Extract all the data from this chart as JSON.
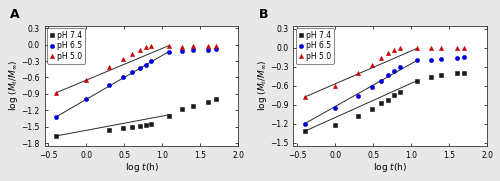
{
  "panel_A": {
    "label": "A",
    "xlim": [
      -0.55,
      2.0
    ],
    "ylim": [
      -1.85,
      0.35
    ],
    "xticks": [
      -0.5,
      0.0,
      0.5,
      1.0,
      1.5,
      2.0
    ],
    "yticks": [
      -1.8,
      -1.5,
      -1.2,
      -0.9,
      -0.6,
      -0.3,
      0.0,
      0.3
    ],
    "series": [
      {
        "label": "pH 7.4",
        "color": "#1a1a1a",
        "marker": "s",
        "x": [
          -0.4,
          0.3,
          0.48,
          0.6,
          0.7,
          0.78,
          0.85,
          1.08,
          1.26,
          1.4,
          1.6,
          1.7
        ],
        "y": [
          -1.67,
          -1.57,
          -1.52,
          -1.5,
          -1.48,
          -1.47,
          -1.46,
          -1.3,
          -1.18,
          -1.13,
          -1.05,
          -1.0
        ],
        "fit_x": [
          -0.4,
          1.1
        ],
        "fit_y": [
          -1.67,
          -1.28
        ]
      },
      {
        "label": "pH 6.5",
        "color": "#0000dd",
        "marker": "o",
        "x": [
          -0.4,
          0.0,
          0.3,
          0.48,
          0.6,
          0.7,
          0.78,
          0.85,
          1.08,
          1.26,
          1.4,
          1.6,
          1.7
        ],
        "y": [
          -1.32,
          -1.0,
          -0.74,
          -0.6,
          -0.5,
          -0.43,
          -0.37,
          -0.3,
          -0.13,
          -0.12,
          -0.1,
          -0.09,
          -0.08
        ],
        "fit_x": [
          -0.4,
          1.08
        ],
        "fit_y": [
          -1.32,
          -0.13
        ]
      },
      {
        "label": "pH 5.0",
        "color": "#cc0000",
        "marker": "^",
        "x": [
          -0.4,
          0.0,
          0.3,
          0.48,
          0.6,
          0.7,
          0.78,
          0.85,
          1.08,
          1.26,
          1.4,
          1.6,
          1.7
        ],
        "y": [
          -0.88,
          -0.65,
          -0.4,
          -0.27,
          -0.17,
          -0.1,
          -0.05,
          -0.02,
          -0.03,
          -0.05,
          -0.03,
          -0.02,
          -0.02
        ],
        "fit_x": [
          -0.4,
          1.08
        ],
        "fit_y": [
          -0.88,
          -0.02
        ]
      }
    ]
  },
  "panel_B": {
    "label": "B",
    "xlim": [
      -0.55,
      2.0
    ],
    "ylim": [
      -1.55,
      0.35
    ],
    "xticks": [
      -0.5,
      0.0,
      0.5,
      1.0,
      1.5,
      2.0
    ],
    "yticks": [
      -1.5,
      -1.2,
      -0.9,
      -0.6,
      -0.3,
      0.0,
      0.3
    ],
    "series": [
      {
        "label": "pH 7.4",
        "color": "#1a1a1a",
        "marker": "s",
        "x": [
          -0.4,
          0.0,
          0.3,
          0.48,
          0.6,
          0.7,
          0.78,
          0.85,
          1.08,
          1.26,
          1.4,
          1.6,
          1.7
        ],
        "y": [
          -1.32,
          -1.22,
          -1.08,
          -0.97,
          -0.88,
          -0.82,
          -0.75,
          -0.7,
          -0.52,
          -0.46,
          -0.43,
          -0.4,
          -0.4
        ],
        "fit_x": [
          -0.4,
          1.08
        ],
        "fit_y": [
          -1.32,
          -0.52
        ]
      },
      {
        "label": "pH 6.5",
        "color": "#0000dd",
        "marker": "o",
        "x": [
          -0.4,
          0.0,
          0.3,
          0.48,
          0.6,
          0.7,
          0.78,
          0.85,
          1.08,
          1.26,
          1.4,
          1.6,
          1.7
        ],
        "y": [
          -1.2,
          -0.95,
          -0.77,
          -0.62,
          -0.52,
          -0.43,
          -0.37,
          -0.3,
          -0.2,
          -0.2,
          -0.18,
          -0.16,
          -0.15
        ],
        "fit_x": [
          -0.4,
          1.08
        ],
        "fit_y": [
          -1.2,
          -0.2
        ]
      },
      {
        "label": "pH 5.0",
        "color": "#cc0000",
        "marker": "^",
        "x": [
          -0.4,
          0.0,
          0.3,
          0.48,
          0.6,
          0.7,
          0.78,
          0.85,
          1.08,
          1.26,
          1.4,
          1.6,
          1.7
        ],
        "y": [
          -0.78,
          -0.6,
          -0.4,
          -0.27,
          -0.17,
          -0.09,
          -0.04,
          -0.01,
          -0.01,
          -0.01,
          0.0,
          0.0,
          0.0
        ],
        "fit_x": [
          -0.4,
          1.08
        ],
        "fit_y": [
          -0.78,
          -0.01
        ]
      }
    ]
  },
  "fig_bg": "#e8e8e8",
  "plot_bg": "#ffffff",
  "line_color": "#2a2a2a",
  "legend_fontsize": 5.5,
  "axis_label_fontsize": 6.5,
  "tick_fontsize": 5.5,
  "label_fontsize": 9,
  "marker_size": 3.0,
  "linewidth": 0.7
}
